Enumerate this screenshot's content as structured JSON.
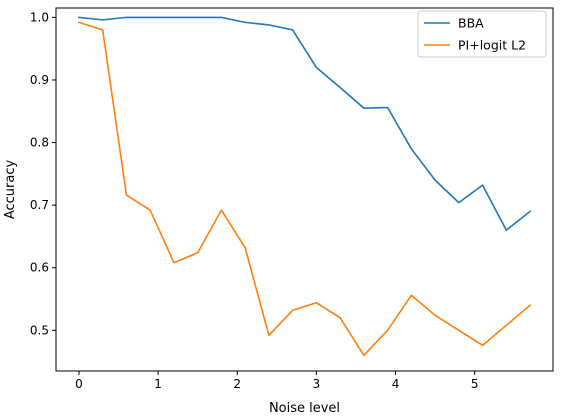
{
  "chart_data": {
    "type": "line",
    "xlabel": "Noise level",
    "ylabel": "Accuracy",
    "xlim": [
      -0.29,
      5.99
    ],
    "ylim": [
      0.435,
      1.015
    ],
    "xticks": [
      "0",
      "1",
      "2",
      "3",
      "4",
      "5"
    ],
    "yticks": [
      "0.5",
      "0.6",
      "0.7",
      "0.8",
      "0.9",
      "1.0"
    ],
    "grid": false,
    "legend_position": "top-right",
    "x": [
      0,
      0.3,
      0.6,
      0.9,
      1.2,
      1.5,
      1.8,
      2.1,
      2.4,
      2.7,
      3.0,
      3.3,
      3.6,
      3.9,
      4.2,
      4.5,
      4.8,
      5.1,
      5.4,
      5.7
    ],
    "series": [
      {
        "name": "BBA",
        "color": "#1f77b4",
        "values": [
          1.0,
          0.996,
          1.0,
          1.0,
          1.0,
          1.0,
          1.0,
          0.992,
          0.988,
          0.98,
          0.92,
          0.888,
          0.855,
          0.856,
          0.79,
          0.74,
          0.704,
          0.732,
          0.66,
          0.69
        ]
      },
      {
        "name": "PI+logit L2",
        "color": "#ff7f0e",
        "values": [
          0.992,
          0.98,
          0.716,
          0.692,
          0.608,
          0.624,
          0.692,
          0.632,
          0.492,
          0.532,
          0.544,
          0.52,
          0.46,
          0.5,
          0.556,
          0.524,
          0.5,
          0.476,
          0.508,
          0.54
        ]
      }
    ]
  }
}
